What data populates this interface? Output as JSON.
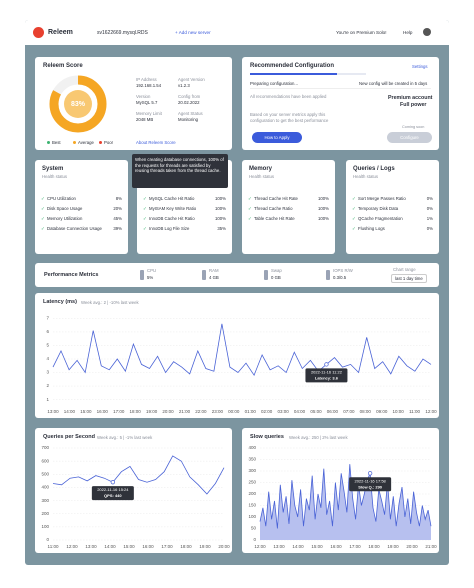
{
  "header": {
    "logo": "Releem",
    "server": "sv1622669.mysql.RDS",
    "add_server": "+ Add new server",
    "plan": "You're on Premium Solo!",
    "help": "Help"
  },
  "score": {
    "title": "Releem Score",
    "value": 83,
    "label": "83%",
    "legend": [
      "Best",
      "Average",
      "Poor"
    ],
    "fields": [
      {
        "label": "IP Address",
        "value": "192.168.1.54"
      },
      {
        "label": "Agent Version",
        "value": "v1.2.3"
      },
      {
        "label": "Version",
        "value": "MySQL 5.7"
      },
      {
        "label": "Config from",
        "value": "20.02.2022"
      },
      {
        "label": "Memory Limit",
        "value": "2048 MB"
      },
      {
        "label": "Agent Status",
        "value": "Monitoring"
      }
    ],
    "link": "About Releem Score"
  },
  "recommended": {
    "title": "Recommended Configuration",
    "settings": "Settings",
    "progress": 75,
    "status": "Preparing configuration...",
    "next": "New config will be created in 5 days",
    "applied": "All recommendations have been applied",
    "account": "Premium account",
    "power": "Full power",
    "note": "Based on your server metrics apply this configuration to get the best performance",
    "apply": "How to Apply",
    "soon": "Coming soon",
    "configure": "Configure"
  },
  "health": [
    {
      "title": "System",
      "subtitle": "Health status",
      "items": [
        {
          "label": "CPU Utilization",
          "value": "8%"
        },
        {
          "label": "Disk Space Usage",
          "value": "20%"
        },
        {
          "label": "Memory Utilization",
          "value": "45%"
        },
        {
          "label": "Database Connection Usage",
          "value": "39%"
        }
      ]
    },
    {
      "items": [
        {
          "label": "MySQL Cache Hit Ratio",
          "value": "100%"
        },
        {
          "label": "MyISAM Key Write Ratio",
          "value": "100%"
        },
        {
          "label": "InnoDB Cache Hit Ratio",
          "value": "100%"
        },
        {
          "label": "InnoDB Log File Size",
          "value": "35%"
        }
      ]
    },
    {
      "title": "Memory",
      "subtitle": "Health status",
      "items": [
        {
          "label": "Thread Cache Hit Rate",
          "value": "100%"
        },
        {
          "label": "Thread Cache Ratio",
          "value": "100%"
        },
        {
          "label": "Table Cache Hit Rate",
          "value": "100%"
        }
      ]
    },
    {
      "title": "Queries / Logs",
      "subtitle": "Health status",
      "items": [
        {
          "label": "Sort Merge Passes Ratio",
          "value": "0%"
        },
        {
          "label": "Temporary Disk Data",
          "value": "0%"
        },
        {
          "label": "QCache Fragmentation",
          "value": "1%"
        },
        {
          "label": "Flushing Logs",
          "value": "0%"
        }
      ]
    }
  ],
  "tooltip": "When creating database connections, 100% of the requests for threads are satisfied by reusing threads taken from the thread cache.",
  "metrics": {
    "title": "Performance Metrics",
    "items": [
      {
        "label": "CPU",
        "value": "5%"
      },
      {
        "label": "RAM",
        "value": "4 GB"
      },
      {
        "label": "Swap",
        "value": "0 GB"
      },
      {
        "label": "IOPS R/W",
        "value": "0.3/0.5"
      }
    ],
    "range_label": "Chart range",
    "range": "last 1 day time"
  },
  "latency": {
    "title": "Latency (ms)",
    "subtitle": "Week avg.: 2 | -10% last week",
    "ylim": [
      0.6,
      7.4
    ],
    "yticks": [
      1,
      2,
      3,
      4,
      5,
      6,
      7
    ],
    "xticks": [
      "13:00",
      "14:00",
      "15:00",
      "16:00",
      "17:00",
      "18:00",
      "19:00",
      "20:00",
      "21:00",
      "22:00",
      "23:00",
      "00:00",
      "01:00",
      "02:00",
      "03:00",
      "04:00",
      "05:00",
      "06:00",
      "07:00",
      "08:00",
      "09:00",
      "10:00",
      "11:00",
      "12:00"
    ],
    "values": [
      3.4,
      4.6,
      3.2,
      3.9,
      3.0,
      6.1,
      3.5,
      3.2,
      4.0,
      3.1,
      5.1,
      3.6,
      3.3,
      4.2,
      3.0,
      3.8,
      3.4,
      2.9,
      4.6,
      3.3,
      3.1,
      6.6,
      3.4,
      3.0,
      3.7,
      2.8,
      4.3,
      3.2,
      3.5,
      3.0,
      4.5,
      3.3,
      3.9,
      3.1,
      3.6,
      4.1,
      3.4,
      3.6,
      3.0,
      5.6,
      3.3,
      3.8,
      2.9,
      4.2,
      3.5,
      3.1,
      4.0,
      3.6
    ],
    "tip_date": "2022-11-16 11:22",
    "tip_value": "Latency: 3.6"
  },
  "qps": {
    "title": "Queries per Second",
    "subtitle": "Week avg.: 5 | -1% last week",
    "ylim": [
      0,
      700
    ],
    "yticks": [
      0,
      100,
      200,
      300,
      400,
      500,
      600,
      700
    ],
    "xticks": [
      "11:00",
      "12:00",
      "13:00",
      "14:00",
      "15:00",
      "16:00",
      "17:00",
      "18:00",
      "19:00",
      "20:00"
    ],
    "values": [
      430,
      420,
      470,
      480,
      450,
      490,
      470,
      440,
      520,
      560,
      460,
      440,
      460,
      520,
      640,
      600,
      480,
      420,
      350,
      430,
      550
    ],
    "tip_date": "2022-11-16 15:24",
    "tip_value": "QPS: 440"
  },
  "slow": {
    "title": "Slow queries",
    "subtitle": "Week avg.: 250 | 2% last week",
    "ylim": [
      0,
      400
    ],
    "yticks": [
      0,
      50,
      100,
      150,
      200,
      250,
      300,
      350,
      400
    ],
    "xticks": [
      "12:00",
      "13:00",
      "14:00",
      "15:00",
      "16:00",
      "17:00",
      "18:00",
      "19:00",
      "20:00",
      "21:00"
    ],
    "values": [
      80,
      140,
      60,
      210,
      90,
      170,
      50,
      240,
      120,
      190,
      70,
      260,
      150,
      100,
      220,
      60,
      180,
      130,
      280,
      90,
      200,
      140,
      310,
      110,
      170,
      60,
      250,
      130,
      290,
      210,
      120,
      330,
      180,
      90,
      240,
      150,
      200,
      260,
      290,
      140,
      80,
      220,
      170,
      110,
      250,
      90,
      190,
      60,
      160,
      230,
      100,
      180,
      70,
      210,
      120,
      60,
      150,
      90,
      130,
      60
    ],
    "tip_date": "2022-11-16 17:58",
    "tip_value": "Slow Q.: 290"
  }
}
